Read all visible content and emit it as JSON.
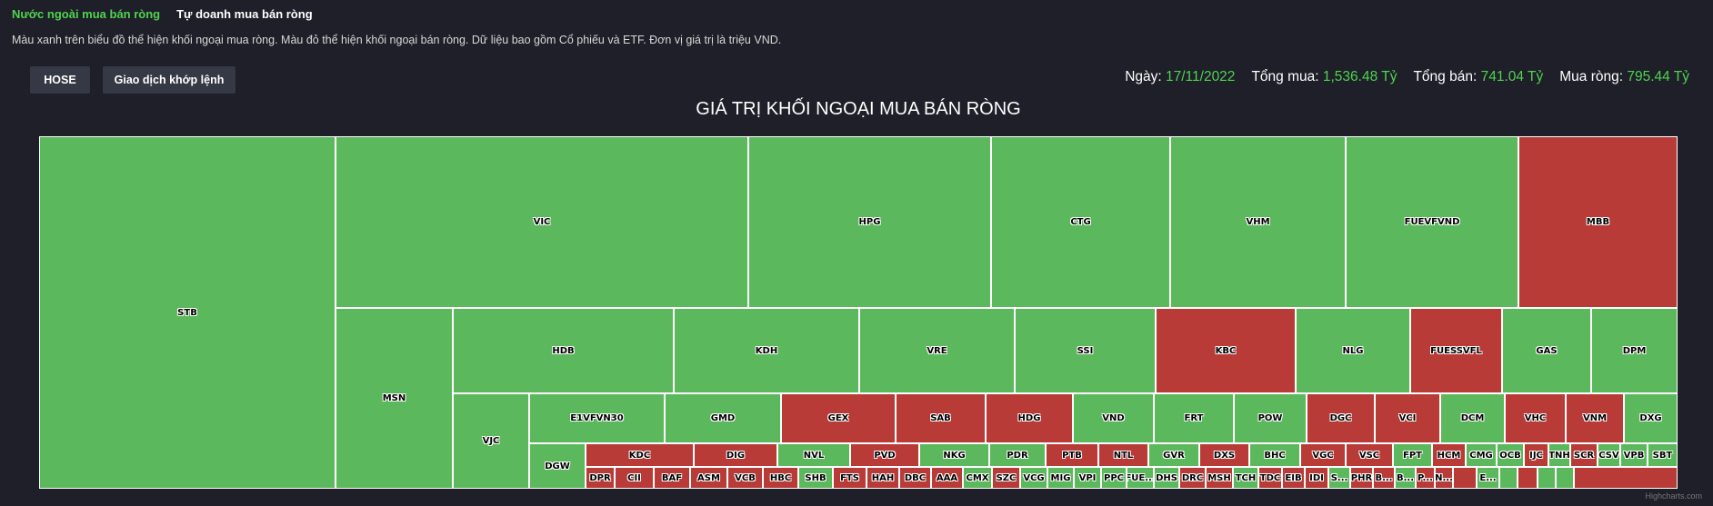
{
  "tabs": [
    {
      "label": "Nước ngoài mua bán ròng",
      "active": true
    },
    {
      "label": "Tự doanh mua bán ròng",
      "active": false
    }
  ],
  "description": "Màu xanh trên biểu đồ thể hiện khối ngoại mua ròng. Màu đỏ thể hiện khối ngoại bán ròng. Dữ liệu bao gồm Cổ phiếu và ETF. Đơn vị giá trị là triệu VND.",
  "buttons": {
    "exchange": "HOSE",
    "type": "Giao dịch khớp lệnh"
  },
  "stats": {
    "date_label": "Ngày:",
    "date": "17/11/2022",
    "buy_label": "Tổng mua:",
    "buy": "1,536.48 Tỷ",
    "sell_label": "Tổng bán:",
    "sell": "741.04 Tỷ",
    "net_label": "Mua ròng:",
    "net": "795.44 Tỷ"
  },
  "colors": {
    "positive": "#5cb85c",
    "negative": "#b83b38",
    "accent": "#4fd34f"
  },
  "chart_data": {
    "type": "treemap",
    "title": "GIÁ TRỊ KHỐI NGOẠI MUA BÁN RÒNG",
    "tiles": [
      {
        "label": "STB",
        "sign": "pos"
      },
      {
        "label": "VIC",
        "sign": "pos"
      },
      {
        "label": "HPG",
        "sign": "pos"
      },
      {
        "label": "CTG",
        "sign": "pos"
      },
      {
        "label": "VHM",
        "sign": "pos"
      },
      {
        "label": "FUEVFVND",
        "sign": "pos"
      },
      {
        "label": "MBB",
        "sign": "neg"
      },
      {
        "label": "MSN",
        "sign": "pos"
      },
      {
        "label": "HDB",
        "sign": "pos"
      },
      {
        "label": "KDH",
        "sign": "pos"
      },
      {
        "label": "VRE",
        "sign": "pos"
      },
      {
        "label": "SSI",
        "sign": "pos"
      },
      {
        "label": "KBC",
        "sign": "neg"
      },
      {
        "label": "NLG",
        "sign": "pos"
      },
      {
        "label": "FUESSVFL",
        "sign": "neg"
      },
      {
        "label": "GAS",
        "sign": "pos"
      },
      {
        "label": "DPM",
        "sign": "pos"
      },
      {
        "label": "VJC",
        "sign": "pos"
      },
      {
        "label": "E1VFVN30",
        "sign": "pos"
      },
      {
        "label": "GMD",
        "sign": "pos"
      },
      {
        "label": "GEX",
        "sign": "neg"
      },
      {
        "label": "SAB",
        "sign": "neg"
      },
      {
        "label": "HDG",
        "sign": "neg"
      },
      {
        "label": "VND",
        "sign": "pos"
      },
      {
        "label": "FRT",
        "sign": "pos"
      },
      {
        "label": "POW",
        "sign": "pos"
      },
      {
        "label": "DGC",
        "sign": "neg"
      },
      {
        "label": "VCI",
        "sign": "neg"
      },
      {
        "label": "DCM",
        "sign": "pos"
      },
      {
        "label": "VHC",
        "sign": "neg"
      },
      {
        "label": "VNM",
        "sign": "neg"
      },
      {
        "label": "DXG",
        "sign": "pos"
      },
      {
        "label": "DGW",
        "sign": "pos"
      },
      {
        "label": "KDC",
        "sign": "neg"
      },
      {
        "label": "DIG",
        "sign": "neg"
      },
      {
        "label": "NVL",
        "sign": "pos"
      },
      {
        "label": "PVD",
        "sign": "neg"
      },
      {
        "label": "NKG",
        "sign": "pos"
      },
      {
        "label": "PDR",
        "sign": "pos"
      },
      {
        "label": "PTB",
        "sign": "neg"
      },
      {
        "label": "NTL",
        "sign": "neg"
      },
      {
        "label": "GVR",
        "sign": "pos"
      },
      {
        "label": "DXS",
        "sign": "neg"
      },
      {
        "label": "BHC",
        "sign": "pos"
      },
      {
        "label": "VGC",
        "sign": "neg"
      },
      {
        "label": "VSC",
        "sign": "neg"
      },
      {
        "label": "FPT",
        "sign": "pos"
      },
      {
        "label": "HCM",
        "sign": "neg"
      },
      {
        "label": "CMG",
        "sign": "pos"
      },
      {
        "label": "OCB",
        "sign": "pos"
      },
      {
        "label": "IJC",
        "sign": "neg"
      },
      {
        "label": "TNH",
        "sign": "pos"
      },
      {
        "label": "SCR",
        "sign": "neg"
      },
      {
        "label": "CSV",
        "sign": "pos"
      },
      {
        "label": "VPB",
        "sign": "pos"
      },
      {
        "label": "SBT",
        "sign": "pos"
      },
      {
        "label": "DPR",
        "sign": "neg"
      },
      {
        "label": "CII",
        "sign": "neg"
      },
      {
        "label": "BAF",
        "sign": "neg"
      },
      {
        "label": "ASM",
        "sign": "neg"
      },
      {
        "label": "VCB",
        "sign": "neg"
      },
      {
        "label": "HBC",
        "sign": "neg"
      },
      {
        "label": "SHB",
        "sign": "pos"
      },
      {
        "label": "FTS",
        "sign": "neg"
      },
      {
        "label": "HAH",
        "sign": "neg"
      },
      {
        "label": "DBC",
        "sign": "neg"
      },
      {
        "label": "AAA",
        "sign": "neg"
      },
      {
        "label": "CMX",
        "sign": "pos"
      },
      {
        "label": "SZC",
        "sign": "neg"
      },
      {
        "label": "VCG",
        "sign": "pos"
      },
      {
        "label": "MIG",
        "sign": "pos"
      },
      {
        "label": "VPI",
        "sign": "pos"
      },
      {
        "label": "PPC",
        "sign": "pos"
      },
      {
        "label": "FUE...",
        "sign": "pos"
      },
      {
        "label": "DHS",
        "sign": "pos"
      },
      {
        "label": "DRC",
        "sign": "neg"
      },
      {
        "label": "MSH",
        "sign": "neg"
      },
      {
        "label": "TCH",
        "sign": "pos"
      },
      {
        "label": "TDC",
        "sign": "neg"
      },
      {
        "label": "EIB",
        "sign": "neg"
      },
      {
        "label": "IDI",
        "sign": "neg"
      },
      {
        "label": "S...",
        "sign": "pos"
      },
      {
        "label": "PHR",
        "sign": "neg"
      },
      {
        "label": "B...",
        "sign": "neg"
      },
      {
        "label": "B...",
        "sign": "pos"
      },
      {
        "label": "P...",
        "sign": "neg"
      },
      {
        "label": "N...",
        "sign": "neg"
      },
      {
        "label": "",
        "sign": "neg"
      },
      {
        "label": "E...",
        "sign": "pos"
      },
      {
        "label": "",
        "sign": "pos"
      },
      {
        "label": "",
        "sign": "neg"
      },
      {
        "label": "",
        "sign": "pos"
      },
      {
        "label": "",
        "sign": "pos"
      },
      {
        "label": "",
        "sign": "neg"
      },
      {
        "label": "",
        "sign": "pos"
      },
      {
        "label": "",
        "sign": "pos"
      }
    ]
  },
  "credit": "Highcharts.com"
}
